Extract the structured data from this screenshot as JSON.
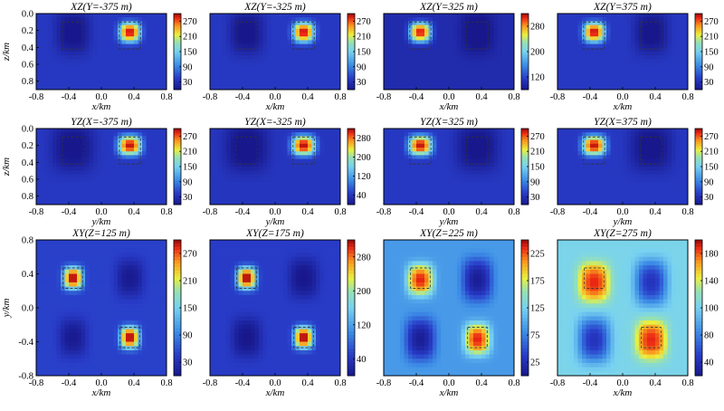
{
  "chart_data": [
    {
      "type": "heatmap",
      "title": "XZ(Y=-375 m)",
      "xlabel": "x/km",
      "ylabel": "z/km",
      "xlim": [
        -0.8,
        0.8
      ],
      "ylim": [
        0,
        0.9
      ],
      "xticks": [
        "-0.8",
        "-0.4",
        "0.0",
        "0.4",
        "0.8"
      ],
      "yticks": [
        "0.0",
        "0.2",
        "0.4",
        "0.6",
        "0.8"
      ],
      "colorbar_ticks": [
        "270",
        "210",
        "150",
        "90",
        "30"
      ],
      "clim": [
        20,
        285
      ],
      "background": 55,
      "anomalies": [
        {
          "shape": "bump",
          "x": -0.35,
          "y": 0.22,
          "sx": 0.16,
          "sy": 0.2,
          "value": -40
        },
        {
          "shape": "bump",
          "x": 0.35,
          "y": 0.22,
          "sx": 0.1,
          "sy": 0.09,
          "value": 225
        }
      ],
      "dashed_boxes": [
        {
          "x": [
            -0.48,
            -0.22
          ],
          "y": [
            0.1,
            0.42
          ]
        },
        {
          "x": [
            0.22,
            0.48
          ],
          "y": [
            0.1,
            0.42
          ]
        }
      ]
    },
    {
      "type": "heatmap",
      "title": "XZ(Y=-325 m)",
      "xlabel": "x/km",
      "ylabel": "",
      "xlim": [
        -0.8,
        0.8
      ],
      "ylim": [
        0,
        0.9
      ],
      "xticks": [
        "-0.8",
        "-0.4",
        "0.0",
        "0.4",
        "0.8"
      ],
      "yticks": [],
      "colorbar_ticks": [
        "270",
        "210",
        "150",
        "90",
        "30"
      ],
      "clim": [
        20,
        285
      ],
      "background": 55,
      "anomalies": [
        {
          "shape": "bump",
          "x": -0.35,
          "y": 0.22,
          "sx": 0.16,
          "sy": 0.2,
          "value": -40
        },
        {
          "shape": "bump",
          "x": 0.35,
          "y": 0.22,
          "sx": 0.1,
          "sy": 0.09,
          "value": 225
        }
      ],
      "dashed_boxes": [
        {
          "x": [
            -0.48,
            -0.22
          ],
          "y": [
            0.1,
            0.42
          ]
        },
        {
          "x": [
            0.22,
            0.48
          ],
          "y": [
            0.1,
            0.42
          ]
        }
      ]
    },
    {
      "type": "heatmap",
      "title": "XZ(Y=325 m)",
      "xlabel": "x/km",
      "ylabel": "",
      "xlim": [
        -0.8,
        0.8
      ],
      "ylim": [
        0,
        0.9
      ],
      "xticks": [
        "-0.8",
        "-0.4",
        "0.0",
        "0.4",
        "0.8"
      ],
      "yticks": [],
      "colorbar_ticks": [
        "280",
        "200",
        "120"
      ],
      "clim": [
        70,
        290
      ],
      "background": 88,
      "anomalies": [
        {
          "shape": "bump",
          "x": -0.35,
          "y": 0.22,
          "sx": 0.1,
          "sy": 0.09,
          "value": 195
        },
        {
          "shape": "bump",
          "x": 0.35,
          "y": 0.22,
          "sx": 0.16,
          "sy": 0.2,
          "value": -25
        }
      ],
      "dashed_boxes": [
        {
          "x": [
            -0.48,
            -0.22
          ],
          "y": [
            0.1,
            0.42
          ]
        },
        {
          "x": [
            0.22,
            0.48
          ],
          "y": [
            0.1,
            0.42
          ]
        }
      ]
    },
    {
      "type": "heatmap",
      "title": "XZ(Y=375 m)",
      "xlabel": "x/km",
      "ylabel": "",
      "xlim": [
        -0.8,
        0.8
      ],
      "ylim": [
        0,
        0.9
      ],
      "xticks": [
        "-0.8",
        "-0.4",
        "0.0",
        "0.4",
        "0.8"
      ],
      "yticks": [],
      "colorbar_ticks": [
        "270",
        "210",
        "150",
        "90",
        "30"
      ],
      "clim": [
        20,
        285
      ],
      "background": 55,
      "anomalies": [
        {
          "shape": "bump",
          "x": -0.35,
          "y": 0.22,
          "sx": 0.1,
          "sy": 0.09,
          "value": 225
        },
        {
          "shape": "bump",
          "x": 0.35,
          "y": 0.22,
          "sx": 0.16,
          "sy": 0.2,
          "value": -40
        }
      ],
      "dashed_boxes": [
        {
          "x": [
            -0.48,
            -0.22
          ],
          "y": [
            0.1,
            0.42
          ]
        },
        {
          "x": [
            0.22,
            0.48
          ],
          "y": [
            0.1,
            0.42
          ]
        }
      ]
    },
    {
      "type": "heatmap",
      "title": "YZ(X=-375 m)",
      "xlabel": "y/km",
      "ylabel": "z/km",
      "xlim": [
        -0.8,
        0.8
      ],
      "ylim": [
        0,
        0.9
      ],
      "xticks": [
        "-0.8",
        "-0.4",
        "0.0",
        "0.4",
        "0.8"
      ],
      "yticks": [
        "0.0",
        "0.2",
        "0.4",
        "0.6",
        "0.8"
      ],
      "colorbar_ticks": [
        "270",
        "210",
        "150",
        "90",
        "30"
      ],
      "clim": [
        20,
        285
      ],
      "background": 55,
      "anomalies": [
        {
          "shape": "bump",
          "x": -0.35,
          "y": 0.22,
          "sx": 0.2,
          "sy": 0.22,
          "value": -40
        },
        {
          "shape": "bump",
          "x": 0.35,
          "y": 0.2,
          "sx": 0.11,
          "sy": 0.09,
          "value": 225
        }
      ],
      "dashed_boxes": [
        {
          "x": [
            -0.48,
            -0.22
          ],
          "y": [
            0.1,
            0.42
          ]
        },
        {
          "x": [
            0.22,
            0.48
          ],
          "y": [
            0.1,
            0.42
          ]
        }
      ]
    },
    {
      "type": "heatmap",
      "title": "YZ(X=-325 m)",
      "xlabel": "y/km",
      "ylabel": "",
      "xlim": [
        -0.8,
        0.8
      ],
      "ylim": [
        0,
        0.9
      ],
      "xticks": [
        "-0.8",
        "-0.4",
        "0.0",
        "0.4",
        "0.8"
      ],
      "yticks": [],
      "colorbar_ticks": [
        "280",
        "200",
        "120",
        "40"
      ],
      "clim": [
        30,
        290
      ],
      "background": 62,
      "anomalies": [
        {
          "shape": "bump",
          "x": -0.35,
          "y": 0.22,
          "sx": 0.2,
          "sy": 0.22,
          "value": -40
        },
        {
          "shape": "bump",
          "x": 0.35,
          "y": 0.2,
          "sx": 0.11,
          "sy": 0.09,
          "value": 225
        }
      ],
      "dashed_boxes": [
        {
          "x": [
            -0.48,
            -0.22
          ],
          "y": [
            0.1,
            0.42
          ]
        },
        {
          "x": [
            0.22,
            0.48
          ],
          "y": [
            0.1,
            0.42
          ]
        }
      ]
    },
    {
      "type": "heatmap",
      "title": "YZ(X=325 m)",
      "xlabel": "y/km",
      "ylabel": "",
      "xlim": [
        -0.8,
        0.8
      ],
      "ylim": [
        0,
        0.9
      ],
      "xticks": [
        "-0.8",
        "-0.4",
        "0.0",
        "0.4",
        "0.8"
      ],
      "yticks": [],
      "colorbar_ticks": [
        "270",
        "210",
        "150",
        "90",
        "30"
      ],
      "clim": [
        20,
        285
      ],
      "background": 55,
      "anomalies": [
        {
          "shape": "bump",
          "x": -0.35,
          "y": 0.2,
          "sx": 0.11,
          "sy": 0.09,
          "value": 225
        },
        {
          "shape": "bump",
          "x": 0.35,
          "y": 0.22,
          "sx": 0.2,
          "sy": 0.22,
          "value": -40
        }
      ],
      "dashed_boxes": [
        {
          "x": [
            -0.48,
            -0.22
          ],
          "y": [
            0.1,
            0.42
          ]
        },
        {
          "x": [
            0.22,
            0.48
          ],
          "y": [
            0.1,
            0.42
          ]
        }
      ]
    },
    {
      "type": "heatmap",
      "title": "YZ(X=375 m)",
      "xlabel": "y/km",
      "ylabel": "",
      "xlim": [
        -0.8,
        0.8
      ],
      "ylim": [
        0,
        0.9
      ],
      "xticks": [
        "-0.8",
        "-0.4",
        "0.0",
        "0.4",
        "0.8"
      ],
      "yticks": [],
      "colorbar_ticks": [
        "270",
        "210",
        "150",
        "90",
        "30"
      ],
      "clim": [
        20,
        285
      ],
      "background": 55,
      "anomalies": [
        {
          "shape": "bump",
          "x": -0.35,
          "y": 0.2,
          "sx": 0.11,
          "sy": 0.09,
          "value": 225
        },
        {
          "shape": "bump",
          "x": 0.35,
          "y": 0.22,
          "sx": 0.2,
          "sy": 0.22,
          "value": -40
        }
      ],
      "dashed_boxes": [
        {
          "x": [
            -0.48,
            -0.22
          ],
          "y": [
            0.1,
            0.42
          ]
        },
        {
          "x": [
            0.22,
            0.48
          ],
          "y": [
            0.1,
            0.42
          ]
        }
      ]
    },
    {
      "type": "heatmap",
      "title": "XY(Z=125 m)",
      "xlabel": "x/km",
      "ylabel": "y/km",
      "xlim": [
        -0.8,
        0.8
      ],
      "ylim": [
        -0.8,
        0.8
      ],
      "xticks": [
        "-0.8",
        "-0.4",
        "0.0",
        "0.4",
        "0.8"
      ],
      "yticks": [
        "-0.8",
        "-0.4",
        "0.0",
        "0.4",
        "0.8"
      ],
      "colorbar_ticks": [
        "270",
        "210",
        "150",
        "90",
        "30"
      ],
      "clim": [
        20,
        285
      ],
      "background": 62,
      "anomalies": [
        {
          "shape": "bump",
          "x": -0.35,
          "y": 0.35,
          "sx": 0.09,
          "sy": 0.1,
          "value": 225
        },
        {
          "shape": "bump",
          "x": 0.35,
          "y": -0.35,
          "sx": 0.09,
          "sy": 0.1,
          "value": 225
        },
        {
          "shape": "bump",
          "x": 0.35,
          "y": 0.35,
          "sx": 0.13,
          "sy": 0.17,
          "value": -40
        },
        {
          "shape": "bump",
          "x": -0.35,
          "y": -0.35,
          "sx": 0.13,
          "sy": 0.17,
          "value": -40
        }
      ],
      "dashed_boxes": [
        {
          "x": [
            -0.47,
            -0.23
          ],
          "y": [
            0.23,
            0.47
          ]
        },
        {
          "x": [
            0.23,
            0.47
          ],
          "y": [
            -0.47,
            -0.23
          ]
        }
      ]
    },
    {
      "type": "heatmap",
      "title": "XY(Z=175 m)",
      "xlabel": "x/km",
      "ylabel": "",
      "xlim": [
        -0.8,
        0.8
      ],
      "ylim": [
        -0.8,
        0.8
      ],
      "xticks": [
        "-0.8",
        "-0.4",
        "0.0",
        "0.4",
        "0.8"
      ],
      "yticks": [],
      "colorbar_ticks": [
        "280",
        "200",
        "120",
        "40"
      ],
      "clim": [
        30,
        290
      ],
      "background": 68,
      "anomalies": [
        {
          "shape": "bump",
          "x": -0.35,
          "y": 0.35,
          "sx": 0.09,
          "sy": 0.1,
          "value": 225
        },
        {
          "shape": "bump",
          "x": 0.35,
          "y": -0.35,
          "sx": 0.09,
          "sy": 0.1,
          "value": 225
        },
        {
          "shape": "bump",
          "x": 0.35,
          "y": 0.35,
          "sx": 0.14,
          "sy": 0.18,
          "value": -40
        },
        {
          "shape": "bump",
          "x": -0.35,
          "y": -0.35,
          "sx": 0.14,
          "sy": 0.18,
          "value": -40
        }
      ],
      "dashed_boxes": [
        {
          "x": [
            -0.47,
            -0.23
          ],
          "y": [
            0.23,
            0.47
          ]
        },
        {
          "x": [
            0.23,
            0.47
          ],
          "y": [
            -0.47,
            -0.23
          ]
        }
      ]
    },
    {
      "type": "heatmap",
      "title": "XY(Z=225 m)",
      "xlabel": "x/km",
      "ylabel": "",
      "xlim": [
        -0.8,
        0.8
      ],
      "ylim": [
        -0.8,
        0.8
      ],
      "xticks": [
        "-0.8",
        "-0.4",
        "0.0",
        "0.4",
        "0.8"
      ],
      "yticks": [],
      "colorbar_ticks": [
        "225",
        "175",
        "125",
        "75",
        "25"
      ],
      "clim": [
        20,
        230
      ],
      "background": 95,
      "anomalies": [
        {
          "shape": "bump",
          "x": -0.35,
          "y": 0.33,
          "sx": 0.12,
          "sy": 0.14,
          "value": 125
        },
        {
          "shape": "bump",
          "x": 0.35,
          "y": -0.37,
          "sx": 0.12,
          "sy": 0.14,
          "value": 125
        },
        {
          "shape": "bump",
          "x": 0.35,
          "y": 0.33,
          "sx": 0.14,
          "sy": 0.19,
          "value": -70
        },
        {
          "shape": "bump",
          "x": -0.35,
          "y": -0.37,
          "sx": 0.14,
          "sy": 0.19,
          "value": -70
        }
      ],
      "dashed_boxes": [
        {
          "x": [
            -0.47,
            -0.23
          ],
          "y": [
            0.23,
            0.47
          ]
        },
        {
          "x": [
            0.23,
            0.47
          ],
          "y": [
            -0.47,
            -0.23
          ]
        }
      ]
    },
    {
      "type": "heatmap",
      "title": "XY(Z=275 m)",
      "xlabel": "x/km",
      "ylabel": "",
      "xlim": [
        -0.8,
        0.8
      ],
      "ylim": [
        -0.8,
        0.8
      ],
      "xticks": [
        "-0.8",
        "-0.4",
        "0.0",
        "0.4",
        "0.8"
      ],
      "yticks": [],
      "colorbar_ticks": [
        "180",
        "140",
        "100",
        "80",
        "40"
      ],
      "clim": [
        35,
        185
      ],
      "background": 112,
      "anomalies": [
        {
          "shape": "bump",
          "x": -0.35,
          "y": 0.3,
          "sx": 0.15,
          "sy": 0.18,
          "value": 65
        },
        {
          "shape": "bump",
          "x": 0.35,
          "y": -0.38,
          "sx": 0.15,
          "sy": 0.18,
          "value": 65
        },
        {
          "shape": "bump",
          "x": 0.35,
          "y": 0.3,
          "sx": 0.15,
          "sy": 0.2,
          "value": -60
        },
        {
          "shape": "bump",
          "x": -0.35,
          "y": -0.38,
          "sx": 0.15,
          "sy": 0.2,
          "value": -60
        }
      ],
      "dashed_boxes": [
        {
          "x": [
            -0.47,
            -0.23
          ],
          "y": [
            0.23,
            0.47
          ]
        },
        {
          "x": [
            0.23,
            0.47
          ],
          "y": [
            -0.47,
            -0.23
          ]
        }
      ]
    }
  ]
}
